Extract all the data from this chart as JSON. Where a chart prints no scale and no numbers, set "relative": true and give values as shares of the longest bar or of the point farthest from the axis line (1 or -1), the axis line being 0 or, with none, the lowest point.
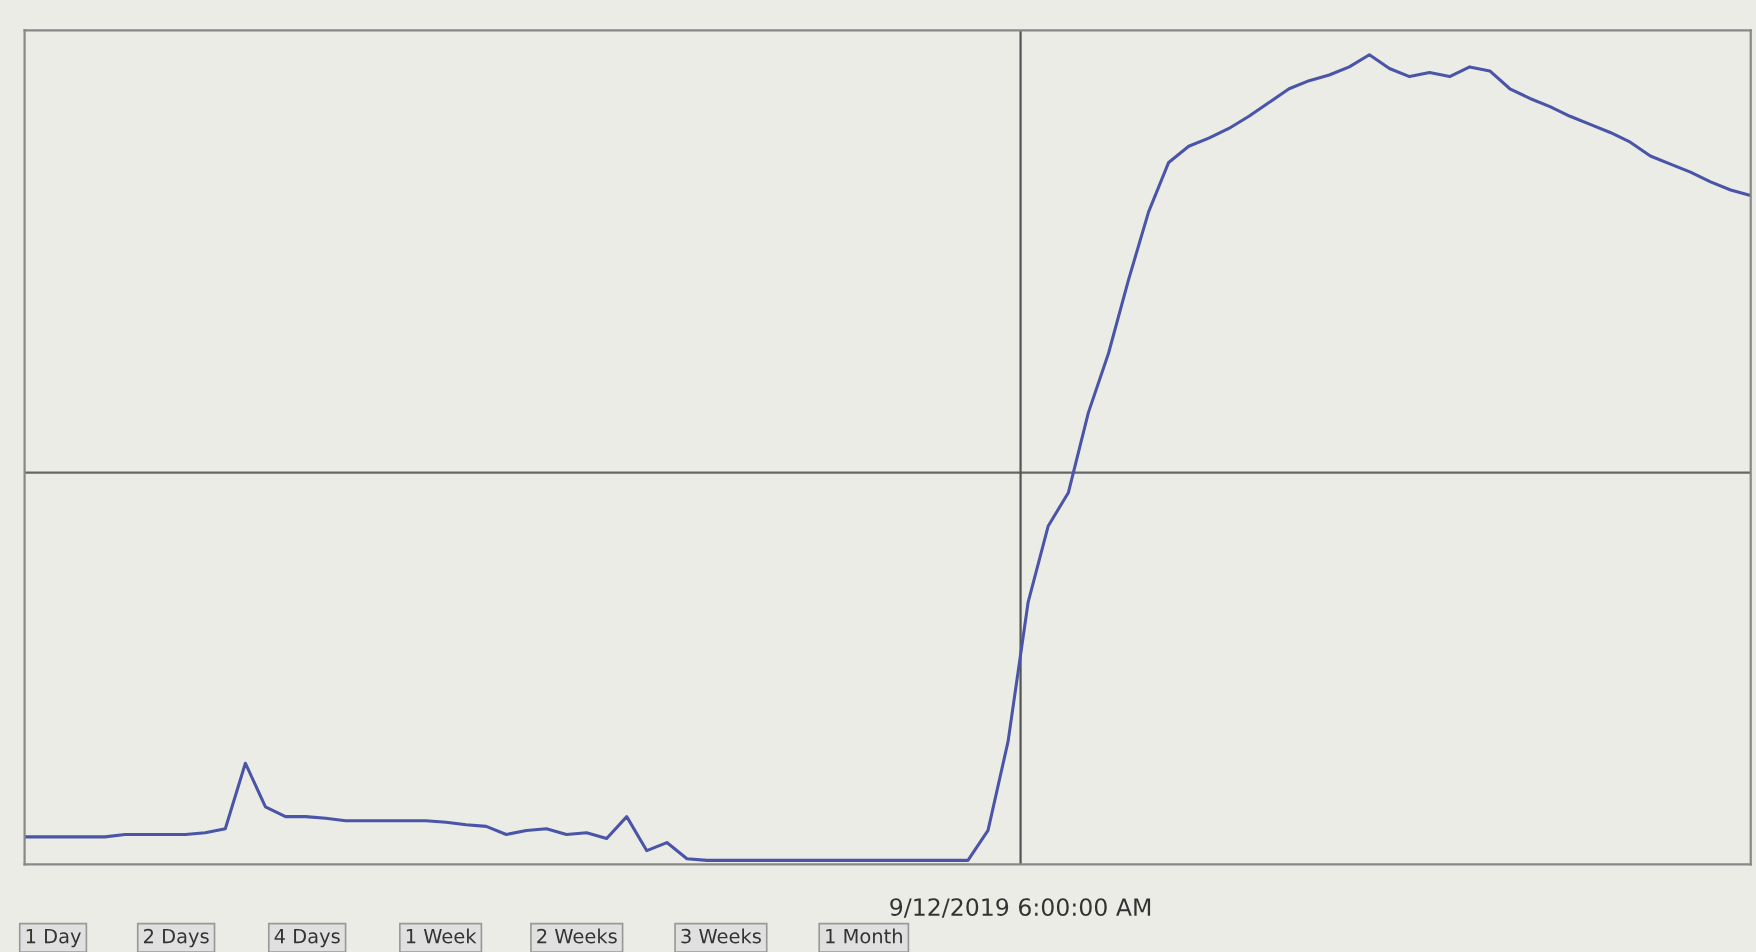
{
  "chart_data": {
    "type": "line",
    "relative": true,
    "grid": "x",
    "ref_lines": [
      {
        "axis": "y",
        "value": 0.484,
        "color": "#666666"
      }
    ],
    "marker": "none",
    "line_style": "solid",
    "legend": false,
    "categories": [
      null,
      null,
      null,
      null,
      null,
      null,
      null,
      null,
      null,
      null,
      null,
      null,
      null,
      null,
      null,
      null,
      null,
      null,
      null,
      null,
      null,
      null,
      null,
      null,
      null,
      null,
      null,
      null,
      null,
      null,
      null,
      null,
      null,
      null,
      null,
      null,
      null,
      null,
      null,
      null,
      null,
      null,
      null,
      null,
      null,
      null,
      null,
      null,
      null,
      null,
      null,
      null,
      null,
      null,
      null,
      null,
      null,
      null,
      null,
      null,
      null,
      null,
      null,
      null,
      null,
      null,
      null,
      null,
      null,
      null,
      null,
      null,
      null,
      null,
      null,
      null,
      null,
      null,
      null,
      null,
      null,
      null,
      null,
      null,
      null,
      null,
      null
    ],
    "series": [
      {
        "color": "#4a55a8",
        "values": [
          0.034,
          0.034,
          0.034,
          0.034,
          0.034,
          0.037,
          0.037,
          0.037,
          0.037,
          0.039,
          0.044,
          0.125,
          0.071,
          0.059,
          0.059,
          0.057,
          0.054,
          0.054,
          0.054,
          0.054,
          0.054,
          0.052,
          0.049,
          0.047,
          0.037,
          0.042,
          0.044,
          0.037,
          0.039,
          0.032,
          0.059,
          0.017,
          0.027,
          0.007,
          0.005,
          0.005,
          0.005,
          0.005,
          0.005,
          0.005,
          0.005,
          0.005,
          0.005,
          0.005,
          0.005,
          0.005,
          0.005,
          0.005,
          0.042,
          0.152,
          0.324,
          0.418,
          0.459,
          0.558,
          0.631,
          0.722,
          0.806,
          0.867,
          0.887,
          0.897,
          0.909,
          0.924,
          0.941,
          0.958,
          0.968,
          0.975,
          0.985,
          1.0,
          0.983,
          0.973,
          0.978,
          0.973,
          0.985,
          0.98,
          0.958,
          0.946,
          0.936,
          0.924,
          0.914,
          0.904,
          0.892,
          0.875,
          0.865,
          0.855,
          0.843,
          0.833,
          0.826
        ]
      }
    ],
    "annotations": [
      "9/12/2019 6:00:00 AM",
      "1 Day",
      "2 Days",
      "4 Days",
      "1 Week",
      "2 Weeks",
      "3 Weeks",
      "1 Month"
    ]
  }
}
